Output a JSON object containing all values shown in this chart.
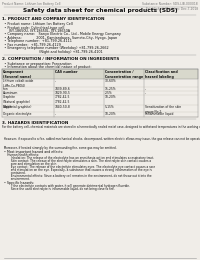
{
  "bg_color": "#f0ede8",
  "header_top_left": "Product Name: Lithium Ion Battery Cell",
  "header_top_right": "Substance Number: SDS-LIB-000018\nEstablished / Revision: Dec.7.2018",
  "title": "Safety data sheet for chemical products (SDS)",
  "section1_title": "1. PRODUCT AND COMPANY IDENTIFICATION",
  "section1_lines": [
    "  • Product name: Lithium Ion Battery Cell",
    "  • Product code: Cylindrical-type cell",
    "      ISY-18650U, ISY-18650L, ISY-18650A",
    "  • Company name:   Sanyo Electric Co., Ltd., Mobile Energy Company",
    "  • Address:             2001, Kamiandaura, Sumoto-City, Hyogo, Japan",
    "  • Telephone number:  +81-799-26-4111",
    "  • Fax number:  +81-799-26-4129",
    "  • Emergency telephone number (Weekday) +81-799-26-2662",
    "                                 (Night and holiday) +81-799-26-4101"
  ],
  "section2_title": "2. COMPOSITION / INFORMATION ON INGREDIENTS",
  "section2_sub1": "  • Substance or preparation: Preparation",
  "section2_sub2": "  • Information about the chemical nature of product:",
  "table_headers": [
    "Component\n(Several name)",
    "CAS number",
    "Concentration /\nConcentration range",
    "Classification and\nhazard labeling"
  ],
  "table_rows": [
    [
      "Lithium cobalt oxide\n(LiMn-Co-PBO4)",
      "-",
      "30-60%",
      ""
    ],
    [
      "Iron",
      "7439-89-6",
      "15-25%",
      "-"
    ],
    [
      "Aluminum",
      "7429-90-5",
      "2-5%",
      "-"
    ],
    [
      "Graphite\n(Natural graphite)\n(Artificial graphite)",
      "7782-42-5\n7782-42-5",
      "10-20%",
      ""
    ],
    [
      "Copper",
      "7440-50-8",
      "5-15%",
      "Sensitization of the skin\ngroup No.2"
    ],
    [
      "Organic electrolyte",
      "-",
      "10-20%",
      "Inflammable liquid"
    ]
  ],
  "section3_title": "3. HAZARDS IDENTIFICATION",
  "section3_para1": "For the battery cell, chemical materials are stored in a hermetically sealed metal case, designed to withstand temperatures in the working conditions during normal use. As a result, during normal use, there is no physical danger of ignition or explosion and there is no danger of hazardous materials leakage.",
  "section3_para2": "  However, if exposed to a fire, added mechanical shocks, decomposed, written electric allows may issue, the gas release can not be operated. The battery cell also will be breached of flue particles, hazardous materials may be released.",
  "section3_para3": "  Moreover, if heated strongly by the surrounding fire, some gas may be emitted.",
  "section3_bullet1_title": "  • Most important hazard and effects:",
  "section3_bullet1_sub": "      Human health effects:\n          Inhalation: The release of the electrolyte has an anesthesia action and stimulates a respiratory tract.\n          Skin contact: The release of the electrolyte stimulates a skin. The electrolyte skin contact causes a\n          sore and stimulation on the skin.\n          Eye contact: The release of the electrolyte stimulates eyes. The electrolyte eye contact causes a sore\n          and stimulation on the eye. Especially, a substance that causes a strong inflammation of the eye is\n          contained.\n          Environmental effects: Since a battery cell remains in the environment, do not throw out it into the\n          environment.",
  "section3_bullet2_title": "  • Specific hazards:",
  "section3_bullet2_sub": "          If the electrolyte contacts with water, it will generate detrimental hydrogen fluoride.\n          Since the used electrolyte is inflammable liquid, do not bring close to fire."
}
